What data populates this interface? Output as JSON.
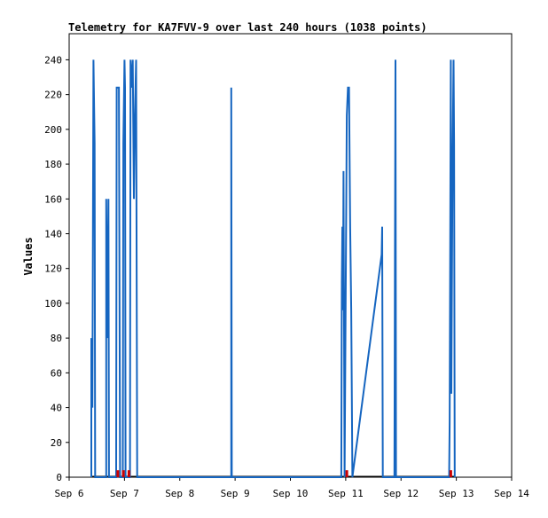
{
  "chart_data": {
    "type": "line",
    "title": "Telemetry for KA7FVV-9 over last 240 hours (1038 points)",
    "xlabel": "",
    "ylabel": "Values",
    "x_tick_labels": [
      "Sep 6",
      "Sep 7",
      "Sep 8",
      "Sep 9",
      "Sep 10",
      "Sep 11",
      "Sep 12",
      "Sep 13",
      "Sep 14"
    ],
    "y_tick_labels": [
      "0",
      "20",
      "40",
      "60",
      "80",
      "100",
      "120",
      "140",
      "160",
      "180",
      "200",
      "220",
      "240"
    ],
    "xlim_days": [
      6,
      14
    ],
    "ylim": [
      0,
      255
    ],
    "grid": false,
    "legend": "none",
    "colors": {
      "primary": "#1565c0",
      "secondary": "#cc0000",
      "baseline": "#000000"
    },
    "series": [
      {
        "color": "#1565c0",
        "points": [
          [
            6.4,
            0
          ],
          [
            6.4,
            80
          ],
          [
            6.42,
            40
          ],
          [
            6.44,
            240
          ],
          [
            6.46,
            192
          ],
          [
            6.47,
            0
          ],
          [
            6.67,
            0
          ],
          [
            6.67,
            160
          ],
          [
            6.69,
            80
          ],
          [
            6.71,
            160
          ],
          [
            6.72,
            0
          ],
          [
            6.85,
            0
          ],
          [
            6.86,
            224
          ],
          [
            6.88,
            224
          ],
          [
            6.9,
            224
          ],
          [
            6.92,
            0
          ],
          [
            6.97,
            0
          ],
          [
            6.98,
            192
          ],
          [
            7.0,
            240
          ],
          [
            7.01,
            224
          ],
          [
            7.02,
            0
          ],
          [
            7.1,
            0
          ],
          [
            7.11,
            240
          ],
          [
            7.13,
            224
          ],
          [
            7.15,
            240
          ],
          [
            7.17,
            160
          ],
          [
            7.19,
            208
          ],
          [
            7.21,
            240
          ],
          [
            7.23,
            0
          ],
          [
            8.93,
            0
          ],
          [
            8.93,
            224
          ],
          [
            8.94,
            0
          ],
          [
            10.92,
            0
          ],
          [
            10.93,
            112
          ],
          [
            10.94,
            144
          ],
          [
            10.95,
            96
          ],
          [
            10.96,
            176
          ],
          [
            10.98,
            0
          ],
          [
            11.02,
            208
          ],
          [
            11.04,
            224
          ],
          [
            11.06,
            224
          ],
          [
            11.08,
            144
          ],
          [
            11.1,
            96
          ],
          [
            11.12,
            0
          ],
          [
            11.65,
            128
          ],
          [
            11.66,
            144
          ],
          [
            11.67,
            0
          ],
          [
            11.88,
            0
          ],
          [
            11.89,
            128
          ],
          [
            11.9,
            240
          ],
          [
            11.91,
            0
          ],
          [
            12.87,
            0
          ],
          [
            12.88,
            32
          ],
          [
            12.89,
            144
          ],
          [
            12.9,
            240
          ],
          [
            12.91,
            48
          ],
          [
            12.93,
            176
          ],
          [
            12.95,
            240
          ],
          [
            12.96,
            192
          ],
          [
            12.97,
            0
          ]
        ]
      },
      {
        "color": "#cc0000",
        "points": [
          [
            6.88,
            4
          ],
          [
            6.98,
            4
          ],
          [
            7.08,
            4
          ],
          [
            11.02,
            4
          ],
          [
            12.9,
            4
          ]
        ]
      }
    ]
  }
}
